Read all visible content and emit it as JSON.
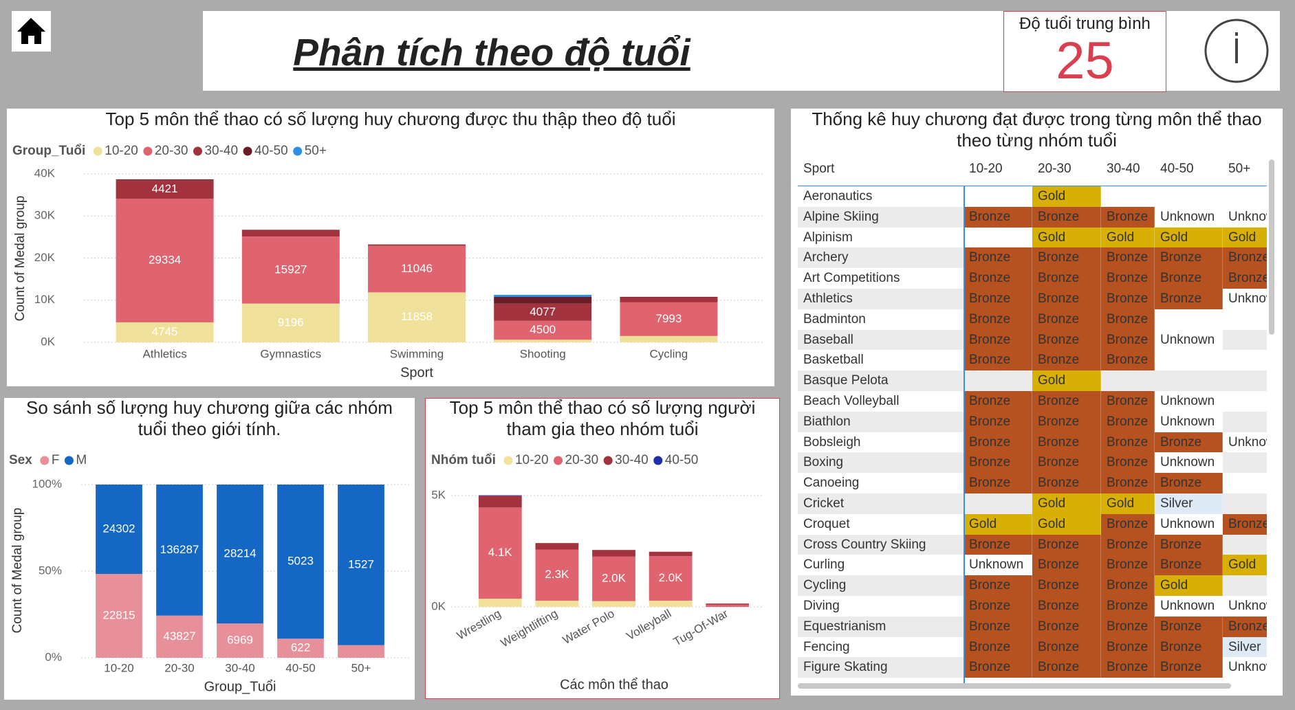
{
  "header": {
    "title": "Phân tích theo độ tuổi"
  },
  "kpi": {
    "label": "Độ tuổi trung bình",
    "value": 25
  },
  "chart_data": [
    {
      "type": "bar",
      "stacked": "absolute",
      "data_labels": true,
      "grid": true,
      "title": "Top 5 môn thể thao có số lượng huy chương được thu thập theo độ tuổi",
      "legend_title": "Group_Tuổi",
      "x_label": "Sport",
      "y_label": "Count of Medal group",
      "categories": [
        "Athletics",
        "Gymnastics",
        "Swimming",
        "Shooting",
        "Cycling"
      ],
      "series": [
        {
          "name": "10-20",
          "color": "#efe199",
          "values": [
            4745,
            9196,
            11858,
            600,
            1500
          ]
        },
        {
          "name": "20-30",
          "color": "#e0646f",
          "values": [
            29334,
            15927,
            11046,
            4500,
            7993
          ]
        },
        {
          "name": "30-40",
          "color": "#a3323f",
          "values": [
            4421,
            1500,
            300,
            4077,
            1200
          ]
        },
        {
          "name": "40-50",
          "color": "#6b1d27",
          "values": [
            200,
            100,
            50,
            1600,
            100
          ]
        },
        {
          "name": "50+",
          "color": "#2e8ee8",
          "values": [
            0,
            0,
            0,
            500,
            0
          ]
        }
      ],
      "ylim": [
        0,
        40000
      ],
      "yticks": [
        {
          "value": 0,
          "label": "0K"
        },
        {
          "value": 10000,
          "label": "10K"
        },
        {
          "value": 20000,
          "label": "20K"
        },
        {
          "value": 30000,
          "label": "30K"
        },
        {
          "value": 40000,
          "label": "40K"
        }
      ]
    },
    {
      "type": "bar",
      "stacked": "percent",
      "data_labels": true,
      "grid": true,
      "title": "So sánh số lượng huy chương giữa các nhóm tuổi theo giới tính.",
      "legend_title": "Sex",
      "x_label": "Group_Tuổi",
      "y_label": "Count of Medal group",
      "categories": [
        "10-20",
        "20-30",
        "30-40",
        "40-50",
        "50+"
      ],
      "series": [
        {
          "name": "F",
          "color": "#e8909a",
          "values": [
            22815,
            43827,
            6969,
            622,
            120
          ]
        },
        {
          "name": "M",
          "color": "#1468c4",
          "values": [
            24302,
            136287,
            28214,
            5023,
            1527
          ]
        }
      ],
      "ylim": [
        0,
        100
      ],
      "yticks": [
        {
          "value": 0,
          "label": "0%"
        },
        {
          "value": 50,
          "label": "50%"
        },
        {
          "value": 100,
          "label": "100%"
        }
      ]
    },
    {
      "type": "bar",
      "stacked": "absolute",
      "grid": true,
      "title": "Top 5 môn thể thao có số lượng người tham gia theo nhóm tuổi",
      "legend_title": "Nhóm tuổi",
      "x_label": "Các môn thể thao",
      "categories": [
        "Wrestling",
        "Weightlifting",
        "Water Polo",
        "Volleyball",
        "Tug-Of-War"
      ],
      "series": [
        {
          "name": "10-20",
          "color": "#f2e19a",
          "values": [
            370,
            280,
            260,
            280,
            0
          ]
        },
        {
          "name": "20-30",
          "color": "#e0646f",
          "values": [
            4100,
            2300,
            2000,
            2000,
            100
          ],
          "value_labels": [
            "4.1K",
            "2.3K",
            "2.0K",
            "2.0K",
            null
          ]
        },
        {
          "name": "30-40",
          "color": "#a3323f",
          "values": [
            530,
            290,
            300,
            200,
            50
          ]
        },
        {
          "name": "40-50",
          "color": "#1f2fa8",
          "values": [
            20,
            0,
            0,
            0,
            0
          ]
        }
      ],
      "ylim": [
        0,
        5500
      ],
      "yticks": [
        {
          "value": 0,
          "label": "0K"
        },
        {
          "value": 5000,
          "label": "5K"
        }
      ]
    }
  ],
  "table": {
    "title": "Thống kê huy chương đạt được trong từng môn thể thao theo từng nhóm tuổi",
    "columns": [
      "Sport",
      "10-20",
      "20-30",
      "30-40",
      "40-50",
      "50+"
    ],
    "cell_colors": {
      "Bronze": "#b5521f",
      "Gold": "#d8b005",
      "Silver": "#deebf7",
      "Unknown": "#ffffff"
    },
    "rows": [
      [
        "Aeronautics",
        null,
        "Gold",
        null,
        null,
        null
      ],
      [
        "Alpine Skiing",
        "Bronze",
        "Bronze",
        "Bronze",
        "Unknown",
        "Unknown"
      ],
      [
        "Alpinism",
        null,
        "Gold",
        "Gold",
        "Gold",
        "Gold"
      ],
      [
        "Archery",
        "Bronze",
        "Bronze",
        "Bronze",
        "Bronze",
        "Bronze"
      ],
      [
        "Art Competitions",
        "Bronze",
        "Bronze",
        "Bronze",
        "Bronze",
        "Bronze"
      ],
      [
        "Athletics",
        "Bronze",
        "Bronze",
        "Bronze",
        "Bronze",
        "Unknown"
      ],
      [
        "Badminton",
        "Bronze",
        "Bronze",
        "Bronze",
        null,
        null
      ],
      [
        "Baseball",
        "Bronze",
        "Bronze",
        "Bronze",
        "Unknown",
        null
      ],
      [
        "Basketball",
        "Bronze",
        "Bronze",
        "Bronze",
        null,
        null
      ],
      [
        "Basque Pelota",
        null,
        "Gold",
        null,
        null,
        null
      ],
      [
        "Beach Volleyball",
        "Bronze",
        "Bronze",
        "Bronze",
        "Unknown",
        null
      ],
      [
        "Biathlon",
        "Bronze",
        "Bronze",
        "Bronze",
        "Unknown",
        null
      ],
      [
        "Bobsleigh",
        "Bronze",
        "Bronze",
        "Bronze",
        "Bronze",
        "Unknown"
      ],
      [
        "Boxing",
        "Bronze",
        "Bronze",
        "Bronze",
        "Unknown",
        null
      ],
      [
        "Canoeing",
        "Bronze",
        "Bronze",
        "Bronze",
        "Bronze",
        null
      ],
      [
        "Cricket",
        null,
        "Gold",
        "Gold",
        "Silver",
        null
      ],
      [
        "Croquet",
        "Gold",
        "Gold",
        "Bronze",
        "Unknown",
        "Bronze"
      ],
      [
        "Cross Country Skiing",
        "Bronze",
        "Bronze",
        "Bronze",
        "Bronze",
        null
      ],
      [
        "Curling",
        "Unknown",
        "Bronze",
        "Bronze",
        "Bronze",
        "Gold"
      ],
      [
        "Cycling",
        "Bronze",
        "Bronze",
        "Bronze",
        "Gold",
        null
      ],
      [
        "Diving",
        "Bronze",
        "Bronze",
        "Bronze",
        "Unknown",
        "Unknown"
      ],
      [
        "Equestrianism",
        "Bronze",
        "Bronze",
        "Bronze",
        "Bronze",
        "Bronze"
      ],
      [
        "Fencing",
        "Bronze",
        "Bronze",
        "Bronze",
        "Bronze",
        "Silver"
      ],
      [
        "Figure Skating",
        "Bronze",
        "Bronze",
        "Bronze",
        "Bronze",
        "Unknown"
      ]
    ]
  }
}
